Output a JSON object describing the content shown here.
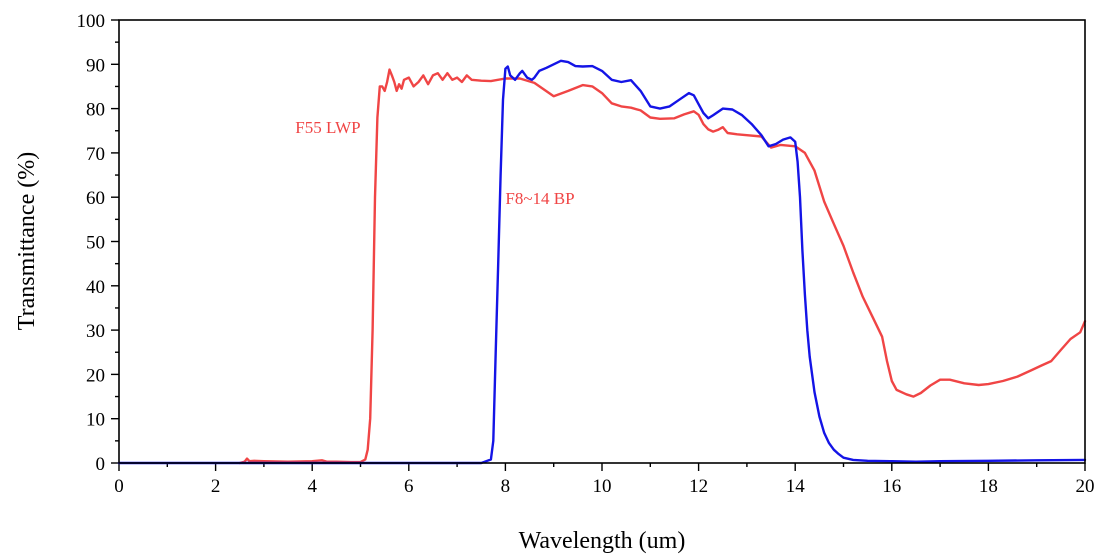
{
  "chart_data": {
    "type": "line",
    "xlabel": "Wavelength (um)",
    "ylabel": "Transmittance (%)",
    "xlim": [
      0,
      20
    ],
    "ylim": [
      0,
      100
    ],
    "x_major_ticks": [
      0,
      2,
      4,
      6,
      8,
      10,
      12,
      14,
      16,
      18,
      20
    ],
    "x_tick_labels": [
      "0",
      "2",
      "4",
      "6",
      "8",
      "10",
      "12",
      "14",
      "16",
      "18",
      "20"
    ],
    "x_minor_ticks": [
      1,
      3,
      5,
      7,
      9,
      11,
      13,
      15,
      17,
      19
    ],
    "y_major_ticks": [
      0,
      10,
      20,
      30,
      40,
      50,
      60,
      70,
      80,
      90,
      100
    ],
    "y_tick_labels": [
      "0",
      "10",
      "20",
      "30",
      "40",
      "50",
      "60",
      "70",
      "80",
      "90",
      "100"
    ],
    "y_minor_ticks": [
      5,
      15,
      25,
      35,
      45,
      55,
      65,
      75,
      85,
      95
    ],
    "grid": false,
    "series": [
      {
        "name": "F55 LWP",
        "color": "#f04545",
        "x": [
          2.5,
          2.6,
          2.65,
          2.7,
          2.8,
          3.0,
          3.5,
          4.0,
          4.2,
          4.3,
          4.5,
          4.8,
          5.0,
          5.1,
          5.15,
          5.2,
          5.25,
          5.3,
          5.35,
          5.4,
          5.45,
          5.5,
          5.55,
          5.6,
          5.65,
          5.7,
          5.75,
          5.8,
          5.85,
          5.9,
          6.0,
          6.1,
          6.2,
          6.3,
          6.4,
          6.5,
          6.6,
          6.7,
          6.8,
          6.9,
          7.0,
          7.1,
          7.2,
          7.3,
          7.5,
          7.7,
          8.0,
          8.3,
          8.6,
          9.0,
          9.3,
          9.6,
          9.8,
          10.0,
          10.2,
          10.4,
          10.6,
          10.8,
          11.0,
          11.2,
          11.5,
          11.7,
          11.9,
          12.0,
          12.1,
          12.2,
          12.3,
          12.4,
          12.5,
          12.6,
          12.8,
          13.0,
          13.3,
          13.5,
          13.7,
          14.0,
          14.2,
          14.4,
          14.6,
          14.8,
          15.0,
          15.2,
          15.4,
          15.6,
          15.8,
          15.9,
          16.0,
          16.1,
          16.3,
          16.45,
          16.6,
          16.8,
          17.0,
          17.2,
          17.5,
          17.8,
          18.0,
          18.3,
          18.6,
          18.9,
          19.1,
          19.3,
          19.5,
          19.7,
          19.9,
          20.0
        ],
        "y": [
          0.0,
          0.3,
          1.0,
          0.4,
          0.5,
          0.4,
          0.3,
          0.4,
          0.6,
          0.3,
          0.3,
          0.2,
          0.2,
          0.8,
          3.0,
          10.0,
          30.0,
          60.0,
          78.0,
          85.0,
          85.0,
          84.0,
          86.0,
          88.8,
          87.5,
          86.0,
          84.0,
          85.5,
          84.5,
          86.5,
          87.0,
          85.0,
          86.0,
          87.5,
          85.5,
          87.5,
          88.0,
          86.5,
          88.0,
          86.5,
          87.0,
          86.0,
          87.5,
          86.5,
          86.3,
          86.2,
          86.8,
          86.8,
          85.8,
          82.8,
          84.0,
          85.3,
          85.0,
          83.5,
          81.2,
          80.5,
          80.2,
          79.6,
          78.0,
          77.7,
          77.8,
          78.7,
          79.4,
          78.6,
          76.5,
          75.3,
          74.8,
          75.2,
          75.8,
          74.5,
          74.2,
          74.0,
          73.7,
          71.2,
          71.8,
          71.5,
          70.0,
          66.0,
          59.0,
          54.0,
          49.0,
          43.0,
          37.5,
          33.0,
          28.5,
          23.0,
          18.5,
          16.5,
          15.5,
          15.0,
          15.8,
          17.5,
          18.8,
          18.8,
          18.0,
          17.6,
          17.8,
          18.5,
          19.5,
          21.0,
          22.0,
          23.0,
          25.5,
          28.0,
          29.5,
          32.0
        ]
      },
      {
        "name": "F8~14 BP",
        "color": "#1414e6",
        "x": [
          0.0,
          7.5,
          7.7,
          7.75,
          7.8,
          7.85,
          7.9,
          7.95,
          8.0,
          8.05,
          8.1,
          8.2,
          8.3,
          8.35,
          8.45,
          8.55,
          8.6,
          8.7,
          8.85,
          9.0,
          9.15,
          9.3,
          9.45,
          9.6,
          9.8,
          10.0,
          10.2,
          10.4,
          10.6,
          10.8,
          11.0,
          11.2,
          11.4,
          11.6,
          11.8,
          11.9,
          12.0,
          12.1,
          12.2,
          12.3,
          12.5,
          12.7,
          12.9,
          13.1,
          13.3,
          13.45,
          13.6,
          13.75,
          13.9,
          14.0,
          14.05,
          14.1,
          14.15,
          14.2,
          14.25,
          14.3,
          14.4,
          14.5,
          14.6,
          14.7,
          14.8,
          14.9,
          15.0,
          15.2,
          15.5,
          16.0,
          16.5,
          17.0,
          18.0,
          19.0,
          20.0
        ],
        "y": [
          0.0,
          0.0,
          0.8,
          5.0,
          25.0,
          45.0,
          65.0,
          82.0,
          89.0,
          89.5,
          87.5,
          86.5,
          88.0,
          88.5,
          87.0,
          86.5,
          87.0,
          88.5,
          89.2,
          90.0,
          90.8,
          90.5,
          89.6,
          89.5,
          89.6,
          88.5,
          86.5,
          86.0,
          86.4,
          84.0,
          80.5,
          80.0,
          80.5,
          82.0,
          83.5,
          83.0,
          81.0,
          79.0,
          77.8,
          78.5,
          80.0,
          79.8,
          78.5,
          76.5,
          74.0,
          71.5,
          72.0,
          73.0,
          73.5,
          72.5,
          68.0,
          60.0,
          48.0,
          38.0,
          30.0,
          24.0,
          16.0,
          10.5,
          6.8,
          4.5,
          3.0,
          2.0,
          1.2,
          0.7,
          0.5,
          0.4,
          0.3,
          0.4,
          0.5,
          0.6,
          0.7
        ]
      }
    ],
    "annotations": [
      {
        "text": "F55 LWP",
        "x": 3.65,
        "y": 74.5,
        "color": "#f04545"
      },
      {
        "text": "F8~14 BP",
        "x": 8.0,
        "y": 58.5,
        "color": "#f04545"
      }
    ]
  }
}
